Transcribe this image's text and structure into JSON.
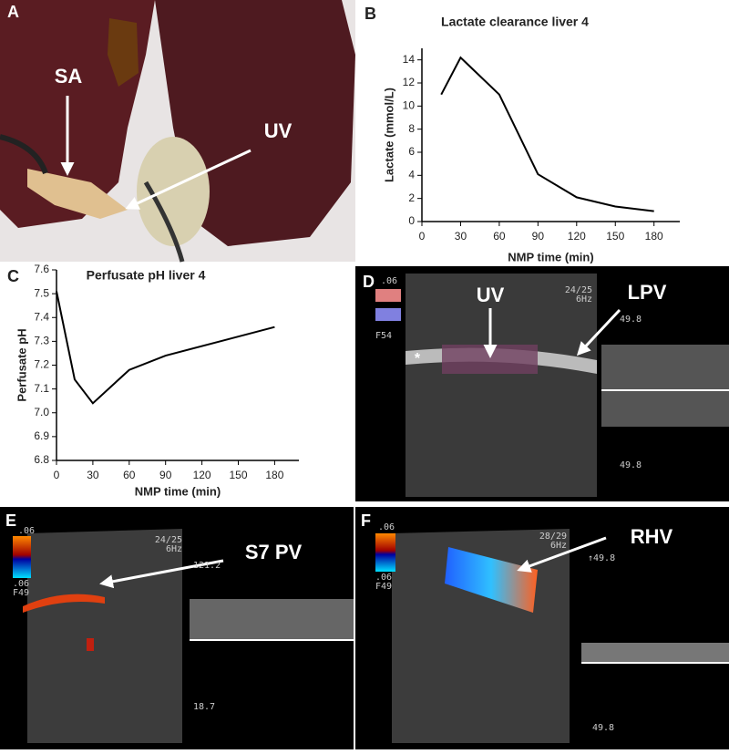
{
  "chart_data": [
    {
      "type": "line",
      "title": "Lactate clearance liver 4",
      "xlabel": "NMP time (min)",
      "ylabel": "Lactate (mmol/L)",
      "x": [
        15,
        30,
        60,
        90,
        120,
        150,
        180
      ],
      "values": [
        11,
        14.2,
        11,
        4.1,
        2.1,
        1.3,
        0.9
      ],
      "color": "#000000",
      "xlim": [
        0,
        200
      ],
      "xticks": [
        0,
        30,
        60,
        90,
        120,
        150,
        180
      ],
      "ylim": [
        0,
        15
      ],
      "yticks": [
        0,
        2,
        4,
        6,
        8,
        10,
        12,
        14
      ]
    },
    {
      "type": "line",
      "title": "Perfusate pH liver 4",
      "xlabel": "NMP time (min)",
      "ylabel": "Perfusate pH",
      "x": [
        0,
        15,
        30,
        60,
        90,
        180
      ],
      "values": [
        7.51,
        7.14,
        7.04,
        7.18,
        7.24,
        7.36
      ],
      "color": "#000000",
      "xlim": [
        0,
        200
      ],
      "xticks": [
        0,
        30,
        60,
        90,
        120,
        150,
        180
      ],
      "ylim": [
        6.8,
        7.6
      ],
      "yticks": [
        6.8,
        6.9,
        {
          "value": 7,
          "label": "7.0"
        },
        7.1,
        7.2,
        7.3,
        7.4,
        7.5,
        7.6
      ]
    }
  ],
  "panels": {
    "a": {
      "label": "A",
      "annotations": [
        "SA",
        "UV"
      ]
    },
    "b": {
      "label": "B"
    },
    "c": {
      "label": "C"
    },
    "d": {
      "label": "D",
      "annotations": [
        "UV",
        "LPV",
        "*"
      ],
      "overlay": [
        ".06",
        "24/25",
        "6Hz",
        "F54",
        "49.8",
        "49.8"
      ]
    },
    "e": {
      "label": "E",
      "annotations": [
        "S7 PV"
      ],
      "overlay": [
        ".06",
        "24/25",
        "6Hz",
        ".06",
        "F49",
        "121.2",
        "18.7"
      ]
    },
    "f": {
      "label": "F",
      "annotations": [
        "RHV"
      ],
      "overlay": [
        ".06",
        "28/29",
        "6Hz",
        ".06",
        "F49",
        "↑49.8",
        "49.8"
      ]
    }
  }
}
